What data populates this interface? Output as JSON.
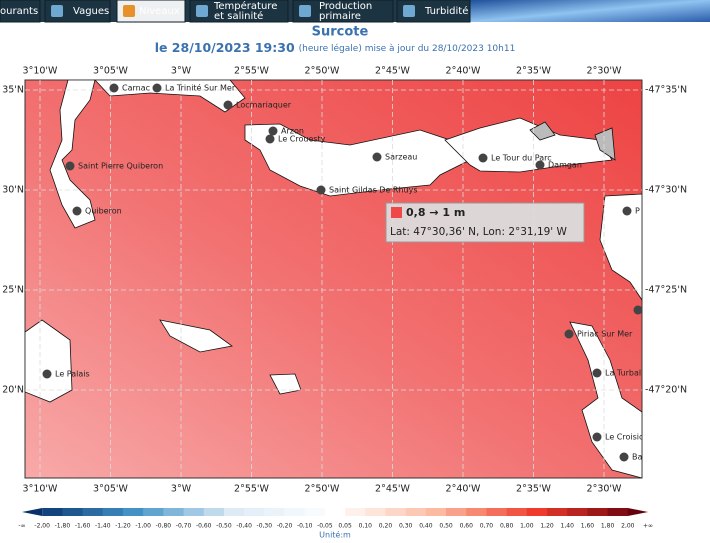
{
  "tabs": [
    "ourants",
    "Vagues",
    "Niveaux",
    [
      "Température",
      "et salinité"
    ],
    [
      "Production",
      "primaire"
    ],
    "Turbidité"
  ],
  "header": {
    "title": "Surcote",
    "date": "le 28/10/2023 19:30",
    "update": "(heure légale) mise à jour du 28/10/2023 10h11"
  },
  "map": {
    "lon_labels": [
      "3°10'W",
      "3°05'W",
      "3°W",
      "2°55'W",
      "2°50'W",
      "2°45'W",
      "2°40'W",
      "2°35'W",
      "2°30'W"
    ],
    "lat_labels_left": [
      "35'N",
      "30'N",
      "25'N",
      "20'N"
    ],
    "lat_labels_right": [
      "-47°35'N",
      "-47°30'N",
      "-47°25'N",
      "-47°20'N"
    ],
    "places": [
      "Carnac",
      "La Trinité Sur Mer",
      "Locmariaquer",
      "Arzon",
      "Le Crouesty",
      "Saint Pierre Quiberon",
      "Quiberon",
      "Sarzeau",
      "Saint Gildas De Rhuys",
      "Le Tour du Parc",
      "Damgan",
      "P",
      "Le Palais",
      "Piriac Sur Mer",
      "La Turballe",
      "Le Croisic",
      "Ba"
    ]
  },
  "tooltip": {
    "range": "0,8 → 1 m",
    "position": "Lat: 47°30,36' N, Lon: 2°31,19' W"
  },
  "legend": {
    "labels": [
      "-∞",
      "-2,00",
      "-1,80",
      "-1,60",
      "-1,40",
      "-1,20",
      "-1,00",
      "-0,80",
      "-0,70",
      "-0,60",
      "-0,50",
      "-0,40",
      "-0,30",
      "-0,20",
      "-0,10",
      "-0,05",
      "0,05",
      "0,10",
      "0,20",
      "0,30",
      "0,40",
      "0,50",
      "0,60",
      "0,70",
      "0,80",
      "1,00",
      "1,20",
      "1,40",
      "1,60",
      "1,80",
      "2,00",
      "+∞"
    ],
    "unit": "Unité:m"
  }
}
